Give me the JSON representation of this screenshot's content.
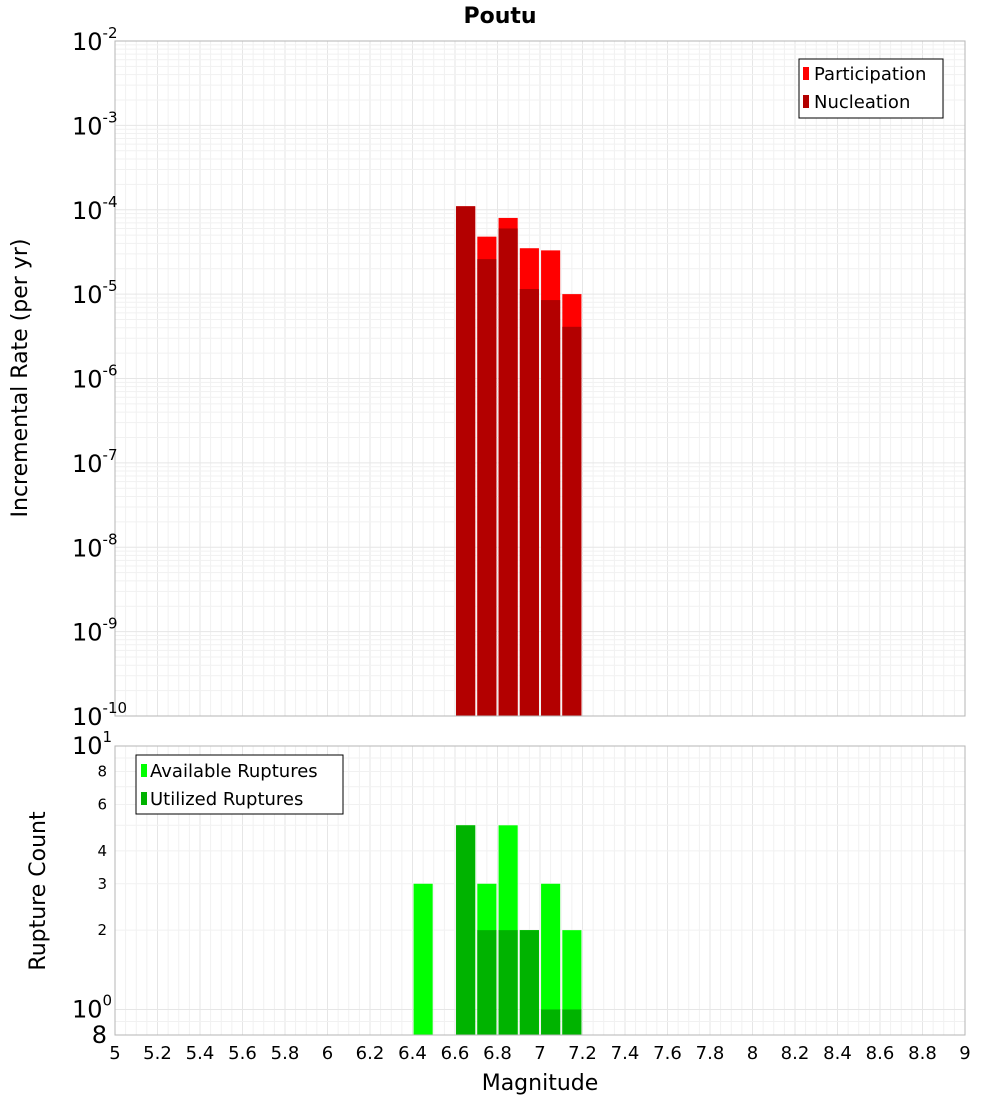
{
  "chart_data": [
    {
      "type": "bar",
      "title": "Poutu",
      "ylabel": "Incremental Rate (per yr)",
      "xlabel": "",
      "y_scale": "log",
      "xlim": [
        5,
        9
      ],
      "ylim": [
        1e-10,
        0.01
      ],
      "y_ticks": [
        {
          "base": "10",
          "exp": "-2"
        },
        {
          "base": "10",
          "exp": "-3"
        },
        {
          "base": "10",
          "exp": "-4"
        },
        {
          "base": "10",
          "exp": "-5"
        },
        {
          "base": "10",
          "exp": "-6"
        },
        {
          "base": "10",
          "exp": "-7"
        },
        {
          "base": "10",
          "exp": "-8"
        },
        {
          "base": "10",
          "exp": "-9"
        },
        {
          "base": "10",
          "exp": "-10"
        }
      ],
      "grid": true,
      "legend_position": "top-right",
      "bar_width": 0.09,
      "x": [
        6.65,
        6.75,
        6.85,
        6.95,
        7.05,
        7.15
      ],
      "series": [
        {
          "name": "Participation",
          "color": "#ff0000",
          "values": [
            0.00011,
            4.8e-05,
            8e-05,
            3.5e-05,
            3.3e-05,
            1e-05
          ]
        },
        {
          "name": "Nucleation",
          "color": "#b30000",
          "values": [
            0.00011,
            2.6e-05,
            6e-05,
            1.15e-05,
            8.5e-06,
            4.1e-06
          ]
        }
      ]
    },
    {
      "type": "bar",
      "title": "",
      "ylabel": "Rupture Count",
      "xlabel": "Magnitude",
      "y_scale": "log",
      "xlim": [
        5,
        9
      ],
      "ylim": [
        0.8,
        10
      ],
      "y_ticks": [
        {
          "value": 10,
          "base": "10",
          "exp": "1"
        },
        {
          "value": 8,
          "label": "8"
        },
        {
          "value": 6,
          "label": "6"
        },
        {
          "value": 4,
          "label": "4"
        },
        {
          "value": 3,
          "label": "3"
        },
        {
          "value": 2,
          "label": "2"
        },
        {
          "value": 1,
          "base": "10",
          "exp": "0"
        },
        {
          "value": 0.8,
          "label": "8"
        }
      ],
      "x_ticks": [
        "5",
        "5.2",
        "5.4",
        "5.6",
        "5.8",
        "6",
        "6.2",
        "6.4",
        "6.6",
        "6.8",
        "7",
        "7.2",
        "7.4",
        "7.6",
        "7.8",
        "8",
        "8.2",
        "8.4",
        "8.6",
        "8.8",
        "9"
      ],
      "grid": true,
      "legend_position": "top-left",
      "bar_width": 0.09,
      "x": [
        6.45,
        6.65,
        6.75,
        6.85,
        6.95,
        7.05,
        7.15
      ],
      "series": [
        {
          "name": "Available Ruptures",
          "color": "#00ff00",
          "values": [
            3,
            5,
            3,
            5,
            2,
            3,
            2
          ]
        },
        {
          "name": "Utilized Ruptures",
          "color": "#00b300",
          "values": [
            0,
            5,
            2,
            2,
            2,
            1,
            1
          ]
        }
      ]
    }
  ]
}
